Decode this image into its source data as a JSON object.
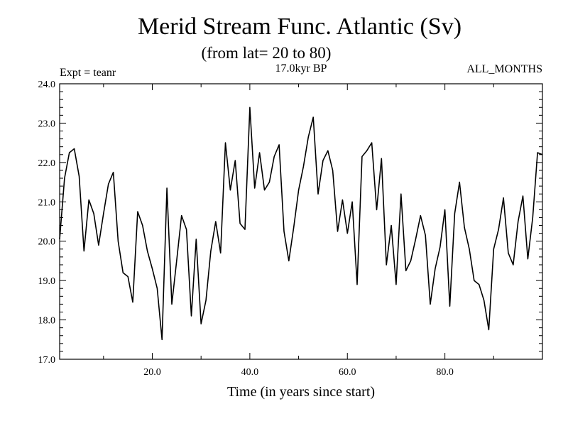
{
  "chart_data": {
    "type": "line",
    "title": "Merid Stream Func. Atlantic (Sv)",
    "subtitle": "(from lat= 20 to 80)",
    "annotations": {
      "left": "Expt = teanr",
      "center": "17.0kyr BP",
      "right": "ALL_MONTHS"
    },
    "xlabel": "Time (in years since start)",
    "ylabel": "",
    "xlim": [
      1,
      100
    ],
    "ylim": [
      17.0,
      24.0
    ],
    "x_ticks": [
      "20.0",
      "40.0",
      "60.0",
      "80.0"
    ],
    "x_tick_values": [
      20,
      40,
      60,
      80
    ],
    "y_ticks": [
      "17.0",
      "18.0",
      "19.0",
      "20.0",
      "21.0",
      "22.0",
      "23.0",
      "24.0"
    ],
    "y_tick_values": [
      17,
      18,
      19,
      20,
      21,
      22,
      23,
      24
    ],
    "grid": false,
    "series": [
      {
        "name": "Merid Stream Func.",
        "color": "#000000",
        "values": [
          20.05,
          21.6,
          22.25,
          22.35,
          21.65,
          19.75,
          21.05,
          20.7,
          19.9,
          20.7,
          21.45,
          21.75,
          20.0,
          19.2,
          19.1,
          18.45,
          20.75,
          20.4,
          19.75,
          19.3,
          18.8,
          17.5,
          21.35,
          18.4,
          19.5,
          20.65,
          20.3,
          18.1,
          20.05,
          17.9,
          18.5,
          19.75,
          20.5,
          19.7,
          22.5,
          21.3,
          22.05,
          20.45,
          20.3,
          23.4,
          21.35,
          22.25,
          21.3,
          21.5,
          22.15,
          22.45,
          20.25,
          19.5,
          20.35,
          21.3,
          21.9,
          22.65,
          23.15,
          21.2,
          22.05,
          22.3,
          21.8,
          20.25,
          21.05,
          20.2,
          21.0,
          18.9,
          22.15,
          22.3,
          22.5,
          20.8,
          22.1,
          19.4,
          20.4,
          18.9,
          21.2,
          19.25,
          19.5,
          20.05,
          20.65,
          20.15,
          18.4,
          19.3,
          19.85,
          20.8,
          18.35,
          20.7,
          21.5,
          20.35,
          19.8,
          19.0,
          18.9,
          18.5,
          17.75,
          19.8,
          20.3,
          21.1,
          19.7,
          19.4,
          20.5,
          21.15,
          19.55,
          20.6,
          22.25,
          22.2
        ]
      }
    ]
  }
}
